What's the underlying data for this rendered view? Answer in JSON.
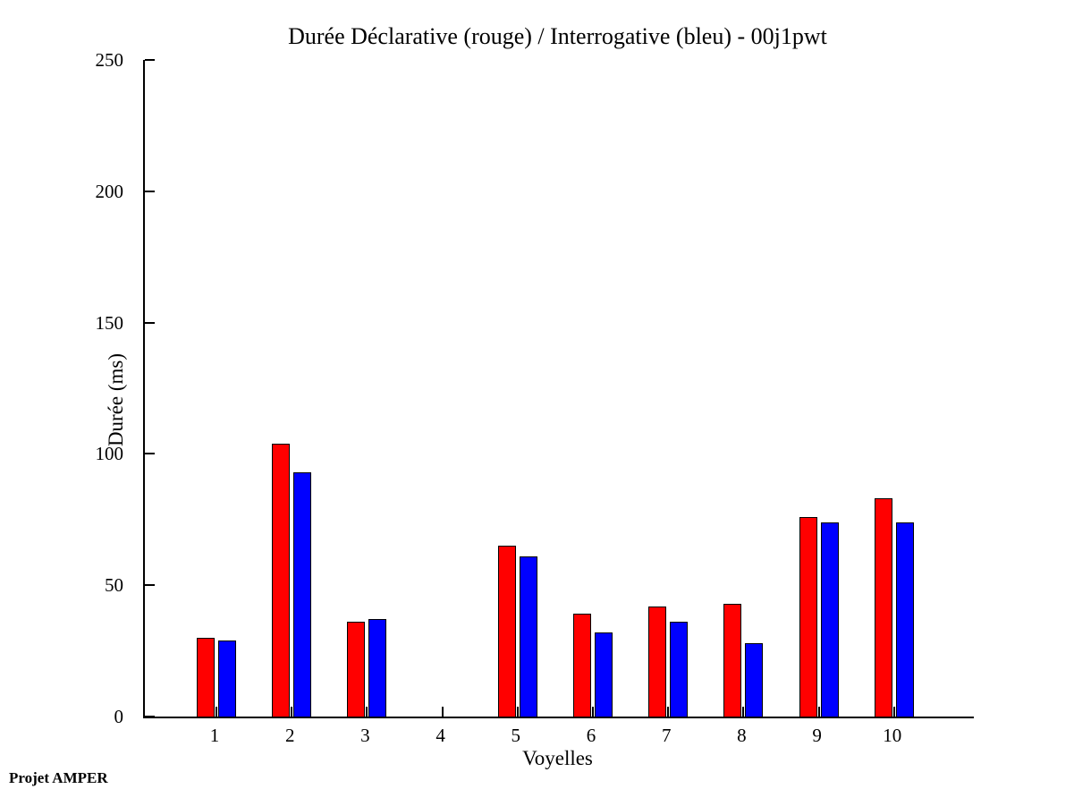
{
  "title": "Durée Déclarative (rouge) / Interrogative (bleu) - 00j1pwt",
  "footer": "Projet AMPER",
  "chart_data": {
    "type": "bar",
    "title": "Durée Déclarative (rouge) / Interrogative (bleu) - 00j1pwt",
    "xlabel": "Voyelles",
    "ylabel": "Durée (ms)",
    "categories": [
      "1",
      "2",
      "3",
      "4",
      "5",
      "6",
      "7",
      "8",
      "9",
      "10"
    ],
    "series": [
      {
        "name": "declarative",
        "label": "Déclarative (rouge)",
        "color": "#ff0000",
        "values": [
          30,
          104,
          36,
          0,
          65,
          39,
          42,
          43,
          76,
          83
        ]
      },
      {
        "name": "interrogative",
        "label": "Interrogative (bleu)",
        "color": "#0000ff",
        "values": [
          29,
          93,
          37,
          0,
          61,
          32,
          36,
          28,
          74,
          74
        ]
      }
    ],
    "ylim": [
      0,
      250
    ],
    "yticks": [
      0,
      50,
      100,
      150,
      200,
      250
    ],
    "grid": false,
    "legend_position": "none",
    "axis_color": "#000000",
    "background_color": "#ffffff",
    "bar_edge_color": "#000000"
  }
}
